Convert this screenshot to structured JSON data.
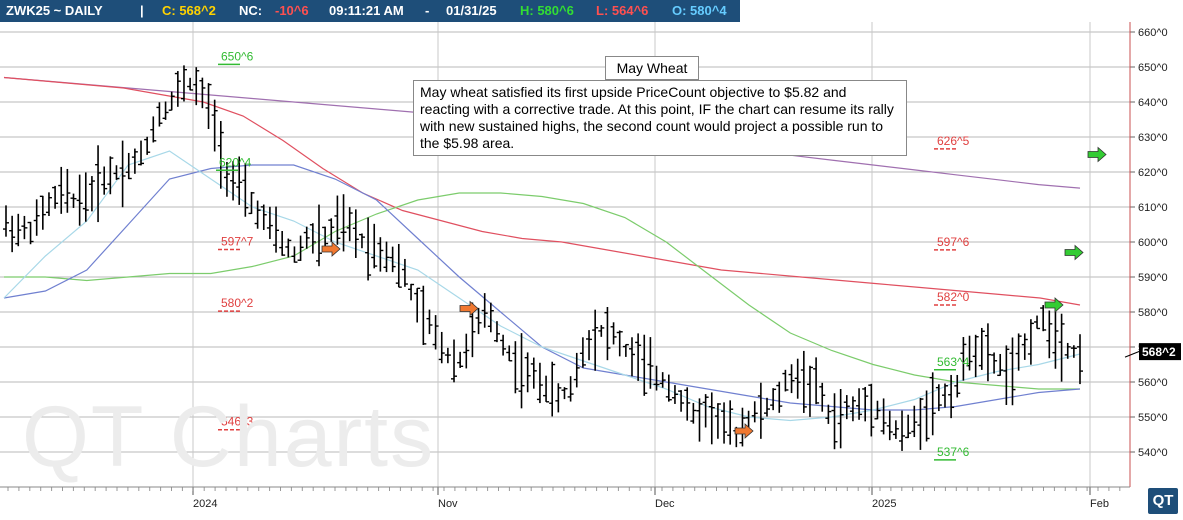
{
  "header": {
    "symbol": "ZWK25 ~ DAILY",
    "sep": "|",
    "close": "C: 568^2",
    "nc_label": "NC:",
    "nc_value": "-10^6",
    "time": "09:11:21 AM",
    "dash": "-",
    "date": "01/31/25",
    "high": "H: 580^6",
    "low": "L: 564^6",
    "open": "O: 580^4"
  },
  "colors": {
    "header_bg": "#1e4e79",
    "up": "#22cc22",
    "down": "#ff4444",
    "open": "#66ccff",
    "ma_red": "#e05060",
    "ma_purple": "#a070b0",
    "ma_green": "#7ccc6c",
    "ma_blue": "#7080d0",
    "ma_lightblue": "#a8d8e8",
    "level_red": "#e04040",
    "level_green": "#33bb33",
    "arrow_orange": "#f07830",
    "arrow_green": "#33cc33"
  },
  "chart_title": "May Wheat",
  "annotation": "May wheat satisfied its first upside PriceCount objective to $5.82 and reacting with a corrective trade.  At this point, IF the chart can resume its rally with new sustained highs, the second count would project a possible run to the $5.98 area.",
  "watermark": "QT Charts",
  "logo": "QT",
  "chart_data": {
    "type": "line",
    "title": "May Wheat",
    "ylim": [
      535,
      665
    ],
    "y_ticks": [
      "660^0",
      "650^0",
      "640^0",
      "630^0",
      "620^0",
      "610^0",
      "600^0",
      "590^0",
      "580^0",
      "570^0",
      "560^0",
      "550^0",
      "540^0"
    ],
    "x_labels": [
      "2024",
      "Nov",
      "Dec",
      "2025",
      "Feb"
    ],
    "last_price_label": "568^2",
    "last_price": 568.25,
    "price_range": {
      "high": 650.75,
      "low": 537.75
    },
    "levels": [
      {
        "label": "650^6",
        "value": 650.75,
        "color": "green"
      },
      {
        "label": "620^4",
        "value": 620.5,
        "color": "green"
      },
      {
        "label": "597^7",
        "value": 597.875,
        "color": "red"
      },
      {
        "label": "580^2",
        "value": 580.25,
        "color": "red"
      },
      {
        "label": "546^3",
        "value": 546.375,
        "color": "red"
      },
      {
        "label": "626^5",
        "value": 626.625,
        "color": "red"
      },
      {
        "label": "597^6",
        "value": 597.75,
        "color": "red"
      },
      {
        "label": "582^0",
        "value": 582.0,
        "color": "red"
      },
      {
        "label": "563^4",
        "value": 563.5,
        "color": "green"
      },
      {
        "label": "537^6",
        "value": 537.75,
        "color": "green"
      }
    ],
    "series": [
      {
        "values": [
          647,
          646,
          645,
          644,
          643,
          642,
          641,
          640,
          639,
          638,
          637,
          636,
          634.6,
          633.2,
          631.8,
          630.4,
          629,
          627.6,
          626.2,
          624.8,
          623.4,
          622,
          620.6,
          619.2,
          617.8,
          616.4,
          615.4
        ]
      },
      {
        "values": [
          647,
          646,
          645,
          644,
          642,
          640,
          636,
          629,
          621,
          614,
          609,
          606,
          603,
          601,
          600,
          598,
          596,
          594,
          592,
          591,
          590,
          589,
          588,
          587,
          586,
          585,
          584,
          582
        ]
      },
      {
        "values": [
          590,
          590,
          589,
          590,
          591,
          591,
          593,
          596,
          603,
          608,
          612,
          614,
          614,
          613,
          611,
          607,
          600,
          591,
          582,
          574,
          569,
          565,
          562,
          560,
          559,
          558,
          558
        ]
      },
      {
        "values": [
          584,
          586,
          592,
          605,
          618,
          621,
          622,
          622,
          618,
          612,
          601,
          590,
          580,
          570,
          564,
          562,
          560,
          558,
          556,
          554,
          553,
          552,
          552,
          553,
          555,
          557,
          558
        ]
      },
      {
        "values": [
          584,
          596,
          606,
          622,
          626,
          618,
          610,
          606,
          600,
          596,
          592,
          584,
          576,
          570,
          566,
          562,
          558,
          553,
          550,
          549,
          550,
          552,
          555,
          560,
          563,
          565,
          568
        ]
      },
      {
        "values": [
          605,
          603,
          604,
          610,
          614,
          612,
          613,
          618,
          620,
          622,
          625,
          636,
          640,
          646,
          644,
          636,
          620,
          615,
          610,
          605,
          600,
          596,
          602,
          600,
          605,
          604,
          600,
          598,
          596,
          590,
          580,
          575,
          568,
          566,
          575,
          580,
          572,
          565,
          562,
          560,
          555,
          558,
          570,
          575,
          574,
          569,
          566,
          562,
          560,
          555,
          550,
          552,
          548,
          545,
          550,
          552,
          555,
          562,
          560,
          558,
          548,
          552,
          553,
          555,
          548,
          545,
          548,
          553,
          556,
          558,
          570,
          568,
          565,
          562,
          570,
          578,
          575,
          570,
          568
        ]
      }
    ]
  }
}
